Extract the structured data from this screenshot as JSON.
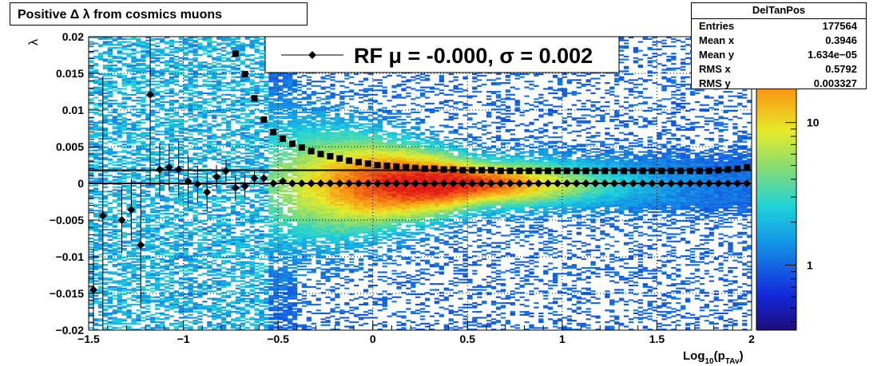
{
  "title": "Positive Δ λ from cosmics muons",
  "stats": {
    "name": "DelTanPos",
    "rows": [
      {
        "label": "Entries",
        "value": "177564"
      },
      {
        "label": "Mean x",
        "value": "0.3946"
      },
      {
        "label": "Mean y",
        "value": "1.634e−05"
      },
      {
        "label": "RMS x",
        "value": "0.5792"
      },
      {
        "label": "RMS y",
        "value": "0.003327"
      }
    ]
  },
  "legend": {
    "label": "RF μ = -0.000, σ =   0.002"
  },
  "chart_data": {
    "type": "heatmap",
    "xlabel": "Log₁₀(p_TAv)",
    "xlabel_main": "Log",
    "xlabel_sub10": "10",
    "xlabel_p": "(p",
    "xlabel_subTAv": "TAv",
    "xlabel_close": ")",
    "ylabel": "λ",
    "xlim": [
      -1.5,
      2.0
    ],
    "ylim": [
      -0.02,
      0.02
    ],
    "xticks": [
      -1.5,
      -1,
      -0.5,
      0,
      0.5,
      1,
      1.5,
      2
    ],
    "xtick_labels": [
      "−1.5",
      "−1",
      "−0.5",
      "0",
      "0.5",
      "1",
      "1.5",
      "2"
    ],
    "yticks": [
      -0.02,
      -0.015,
      -0.01,
      -0.005,
      0,
      0.005,
      0.01,
      0.015,
      0.02
    ],
    "ytick_labels": [
      "−0.02",
      "−0.015",
      "−0.01",
      "−0.005",
      "0",
      "0.005",
      "0.01",
      "0.015",
      "0.02"
    ],
    "colorbar": {
      "scale": "log",
      "ticks": [
        1,
        10
      ],
      "tick_labels": [
        "1",
        "10"
      ],
      "range": [
        0.35,
        40
      ]
    },
    "grid": true,
    "series": [
      {
        "name": "RF",
        "marker": "diamond",
        "x": [
          -1.475,
          -1.425,
          -1.375,
          -1.325,
          -1.275,
          -1.225,
          -1.175,
          -1.125,
          -1.075,
          -1.025,
          -0.975,
          -0.925,
          -0.875,
          -0.825,
          -0.775,
          -0.725,
          -0.675,
          -0.625,
          -0.575,
          -0.525,
          -0.475,
          -0.425,
          -0.375,
          -0.325,
          -0.275,
          -0.225,
          -0.175,
          -0.125,
          -0.075,
          -0.025,
          0.025,
          0.075,
          0.125,
          0.175,
          0.225,
          0.275,
          0.325,
          0.375,
          0.425,
          0.475,
          0.525,
          0.575,
          0.625,
          0.675,
          0.725,
          0.775,
          0.825,
          0.875,
          0.925,
          0.975,
          1.025,
          1.075,
          1.125,
          1.175,
          1.225,
          1.275,
          1.325,
          1.375,
          1.425,
          1.475,
          1.525,
          1.575,
          1.625,
          1.675,
          1.725,
          1.775,
          1.825,
          1.875,
          1.925,
          1.975
        ],
        "y": [
          -0.0145,
          -0.0044,
          null,
          -0.005,
          -0.0036,
          -0.0084,
          0.0121,
          0.0019,
          0.0022,
          0.0019,
          0.0003,
          -0.0001,
          -0.0012,
          0.0009,
          0.0017,
          -0.0006,
          -0.0004,
          0.0007,
          0.0007,
          0.0,
          0.0003,
          0.0,
          0.0,
          0.0,
          0.0,
          0.0,
          0.0,
          0.0,
          0.0,
          0.0,
          0.0,
          0.0,
          0.0,
          0.0,
          0.0,
          0.0,
          0.0,
          0.0,
          0.0,
          0.0,
          0.0,
          0.0,
          0.0,
          0.0,
          0.0,
          0.0,
          0.0,
          0.0,
          0.0,
          0.0,
          0.0,
          0.0,
          0.0,
          0.0,
          0.0,
          0.0,
          0.0,
          0.0,
          0.0,
          0.0,
          0.0,
          0.0,
          0.0,
          0.0,
          0.0,
          0.0,
          0.0,
          0.0,
          0.0,
          0.0
        ],
        "yerr": [
          0.0055,
          0.019,
          null,
          0.0045,
          0.0042,
          0.0086,
          0.0124,
          0.0036,
          0.0032,
          0.0038,
          0.0036,
          0.0025,
          0.0026,
          0.0016,
          0.0015,
          0.0018,
          0.0016,
          0.0009,
          0.0008,
          0.0004,
          0.0003,
          0.0002,
          0.0001,
          0.0001,
          0.0001,
          0.0001,
          0.0001,
          0.0001,
          0.0001,
          0.0001,
          0.0001,
          0.0001,
          0.0001,
          0.0001,
          0.0001,
          0.0001,
          0.0001,
          0.0001,
          0.0001,
          0.0001,
          0.0001,
          0.0001,
          0.0001,
          0.0001,
          0.0001,
          0.0001,
          0.0001,
          0.0001,
          0.0001,
          0.0001,
          0.0001,
          0.0001,
          0.0001,
          0.0001,
          0.0001,
          0.0001,
          0.0001,
          0.0001,
          0.0001,
          0.0001,
          0.0001,
          0.0001,
          0.0001,
          0.0001,
          0.0001,
          0.0001,
          0.0001,
          0.0001,
          0.0001,
          0.0001
        ]
      },
      {
        "marker": "square",
        "x": [
          -0.725,
          -0.675,
          -0.625,
          -0.575,
          -0.525,
          -0.475,
          -0.425,
          -0.375,
          -0.325,
          -0.275,
          -0.225,
          -0.175,
          -0.125,
          -0.075,
          -0.025,
          0.025,
          0.075,
          0.125,
          0.175,
          0.225,
          0.275,
          0.325,
          0.375,
          0.425,
          0.475,
          0.525,
          0.575,
          0.625,
          0.675,
          0.725,
          0.775,
          0.825,
          0.875,
          0.925,
          0.975,
          1.025,
          1.075,
          1.125,
          1.175,
          1.225,
          1.275,
          1.325,
          1.375,
          1.425,
          1.475,
          1.525,
          1.575,
          1.625,
          1.675,
          1.725,
          1.775,
          1.825,
          1.875,
          1.925,
          1.975
        ],
        "y": [
          0.0177,
          0.0149,
          0.0116,
          0.0087,
          0.007,
          0.0061,
          0.0054,
          0.0049,
          0.0044,
          0.004,
          0.0037,
          0.0034,
          0.0031,
          0.0029,
          0.0027,
          0.0025,
          0.0024,
          0.0023,
          0.0022,
          0.0021,
          0.002,
          0.002,
          0.0019,
          0.0019,
          0.0018,
          0.0018,
          0.0018,
          0.0018,
          0.0017,
          0.0017,
          0.0017,
          0.0017,
          0.0017,
          0.0017,
          0.0017,
          0.0017,
          0.0017,
          0.0017,
          0.0017,
          0.0017,
          0.0017,
          0.0017,
          0.0017,
          0.0017,
          0.0017,
          0.0017,
          0.0017,
          0.0017,
          0.0017,
          0.0017,
          0.0017,
          0.0018,
          0.0019,
          0.002,
          0.0022
        ],
        "yerr": [
          0.0005,
          0.0004,
          0.0003,
          0.0002,
          0.0002,
          0.0001,
          0.0001,
          0.0001,
          0.0001,
          0.0001,
          0.0001,
          0.0001,
          0.0001,
          0.0001,
          0.0001,
          0.0001,
          0.0001,
          0.0001,
          0.0001,
          0.0001,
          0.0001,
          0.0001,
          0.0001,
          0.0001,
          0.0001,
          0.0001,
          0.0001,
          0.0001,
          0.0001,
          0.0001,
          0.0001,
          0.0001,
          0.0001,
          0.0001,
          0.0001,
          0.0001,
          0.0001,
          0.0001,
          0.0001,
          0.0001,
          0.0001,
          0.0001,
          0.0001,
          0.0001,
          0.0001,
          0.0001,
          0.0001,
          0.0001,
          0.0001,
          0.0001,
          0.0001,
          0.0001,
          0.0001,
          0.0001,
          0.0001
        ]
      }
    ],
    "reference_lines": [
      {
        "y": 0.0018,
        "x_from": -1.5,
        "x_to": 2.0
      },
      {
        "y": 0.0,
        "x_from": -1.5,
        "x_to": 2.0
      }
    ]
  },
  "colors": {
    "frame": "#000000",
    "marker": "#000000",
    "grid": "#000000",
    "background": "#ffffff"
  }
}
